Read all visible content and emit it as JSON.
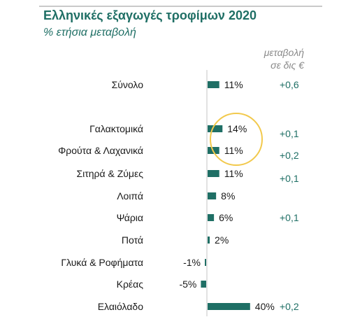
{
  "chart_data": {
    "type": "bar",
    "orientation": "horizontal",
    "title": "Ελληνικές εξαγωγές τροφίμων 2020",
    "subtitle": "% ετήσια μεταβολή",
    "change_header": [
      "μεταβολή",
      "σε δις €"
    ],
    "categories": [
      "Σύνολο",
      "Γαλακτομικά",
      "Φρούτα & Λαχανικά",
      "Σιτηρά & Ζύμες",
      "Λοιπά",
      "Ψάρια",
      "Ποτά",
      "Γλυκά & Ροφήματα",
      "Κρέας",
      "Ελαιόλαδο"
    ],
    "values": [
      11,
      14,
      11,
      11,
      8,
      6,
      2,
      -1,
      -5,
      40
    ],
    "value_labels": [
      "11%",
      "14%",
      "11%",
      "11%",
      "8%",
      "6%",
      "2%",
      "-1%",
      "-5%",
      "40%"
    ],
    "changes": [
      "+0,6",
      "+0,1",
      "+0,2",
      "+0,1",
      "",
      "+0,1",
      "",
      "",
      "",
      "+0,2"
    ],
    "bar_color": "#1f6f65",
    "axis_color": "#d9d9d9",
    "highlight_color": "#f2c94c",
    "highlight_categories": [
      "Γαλακτομικά",
      "Φρούτα & Λαχανικά"
    ]
  }
}
